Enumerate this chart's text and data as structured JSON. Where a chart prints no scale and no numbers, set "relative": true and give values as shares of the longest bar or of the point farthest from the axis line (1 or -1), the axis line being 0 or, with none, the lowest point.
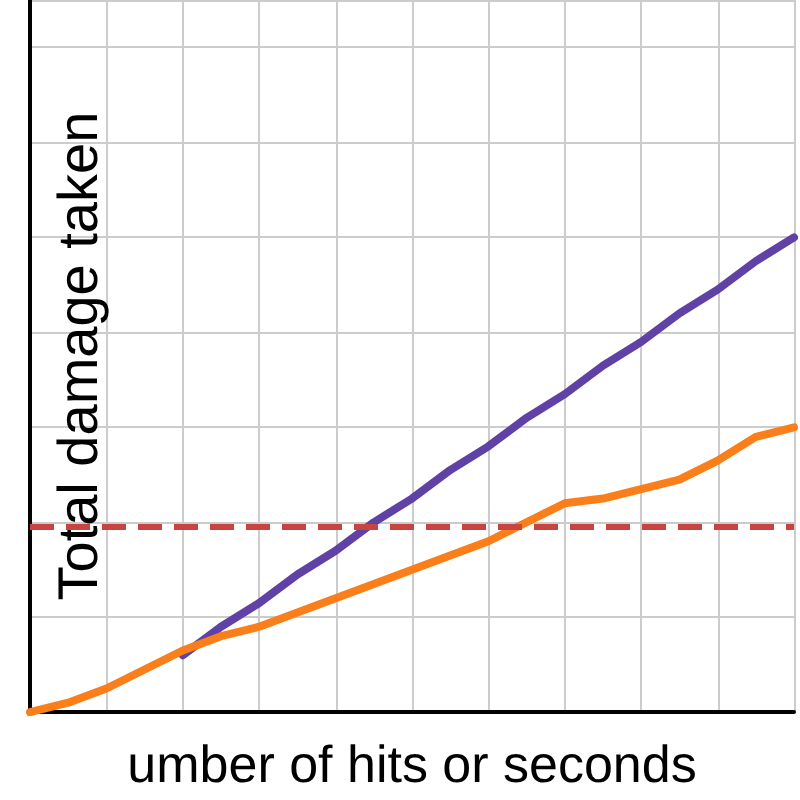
{
  "chart_data": {
    "type": "line",
    "relative": true,
    "xlabel": "umber of hits or seconds",
    "ylabel": "Total damage taken",
    "categories": [
      null,
      null,
      null,
      null,
      null,
      null,
      null,
      null,
      null,
      null,
      null,
      null,
      null,
      null,
      null,
      null,
      null,
      null,
      null,
      null,
      null
    ],
    "series": [
      {
        "color": "#6042a6",
        "values": [
          null,
          null,
          null,
          null,
          0.12,
          0.18,
          0.23,
          0.29,
          0.34,
          0.4,
          0.45,
          0.51,
          0.56,
          0.62,
          0.67,
          0.73,
          0.78,
          0.84,
          0.89,
          0.95,
          1
        ]
      },
      {
        "color": "#fa7e19",
        "values": [
          0,
          0.02,
          0.05,
          0.09,
          0.13,
          0.16,
          0.18,
          0.21,
          0.24,
          0.27,
          0.3,
          0.33,
          0.36,
          0.4,
          0.44,
          0.45,
          0.47,
          0.49,
          0.53,
          0.58,
          0.6
        ]
      }
    ],
    "ref_lines": [
      {
        "axis": "y",
        "value": 0.39,
        "color": "#c74440",
        "line_style": "dashed"
      }
    ],
    "grid": true,
    "marker": "none",
    "line_style": "solid"
  }
}
